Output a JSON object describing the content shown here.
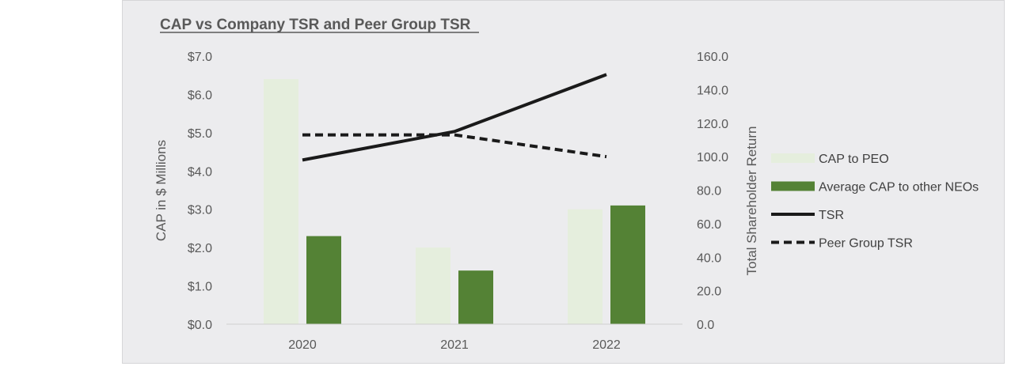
{
  "chart_data": {
    "type": "bar",
    "title": "CAP vs Company TSR and Peer Group TSR",
    "categories": [
      "2020",
      "2021",
      "2022"
    ],
    "ylabel": "CAP in $ Millions",
    "y2label": "Total Shareholder Return",
    "ylim": [
      0,
      7
    ],
    "y2lim": [
      0,
      160
    ],
    "y_ticks": [
      "$0.0",
      "$1.0",
      "$2.0",
      "$3.0",
      "$4.0",
      "$5.0",
      "$6.0",
      "$7.0"
    ],
    "y_tick_values": [
      0,
      1,
      2,
      3,
      4,
      5,
      6,
      7
    ],
    "y2_ticks": [
      "0.0",
      "20.0",
      "40.0",
      "60.0",
      "80.0",
      "100.0",
      "120.0",
      "140.0",
      "160.0"
    ],
    "y2_tick_values": [
      0,
      20,
      40,
      60,
      80,
      100,
      120,
      140,
      160
    ],
    "legend_position": "right",
    "series": [
      {
        "name": "CAP to PEO",
        "kind": "bar",
        "axis": "left",
        "color": "#e5eedd",
        "values": [
          6.4,
          2.0,
          3.0
        ]
      },
      {
        "name": "Average CAP to other NEOs",
        "kind": "bar",
        "axis": "left",
        "color": "#548235",
        "values": [
          2.3,
          1.4,
          3.1
        ]
      },
      {
        "name": "TSR",
        "kind": "line",
        "axis": "right",
        "color": "#1a1a1a",
        "dashed": false,
        "values": [
          98,
          115,
          149
        ]
      },
      {
        "name": "Peer Group TSR",
        "kind": "line",
        "axis": "right",
        "color": "#1a1a1a",
        "dashed": true,
        "values": [
          113,
          113,
          100
        ]
      }
    ]
  }
}
